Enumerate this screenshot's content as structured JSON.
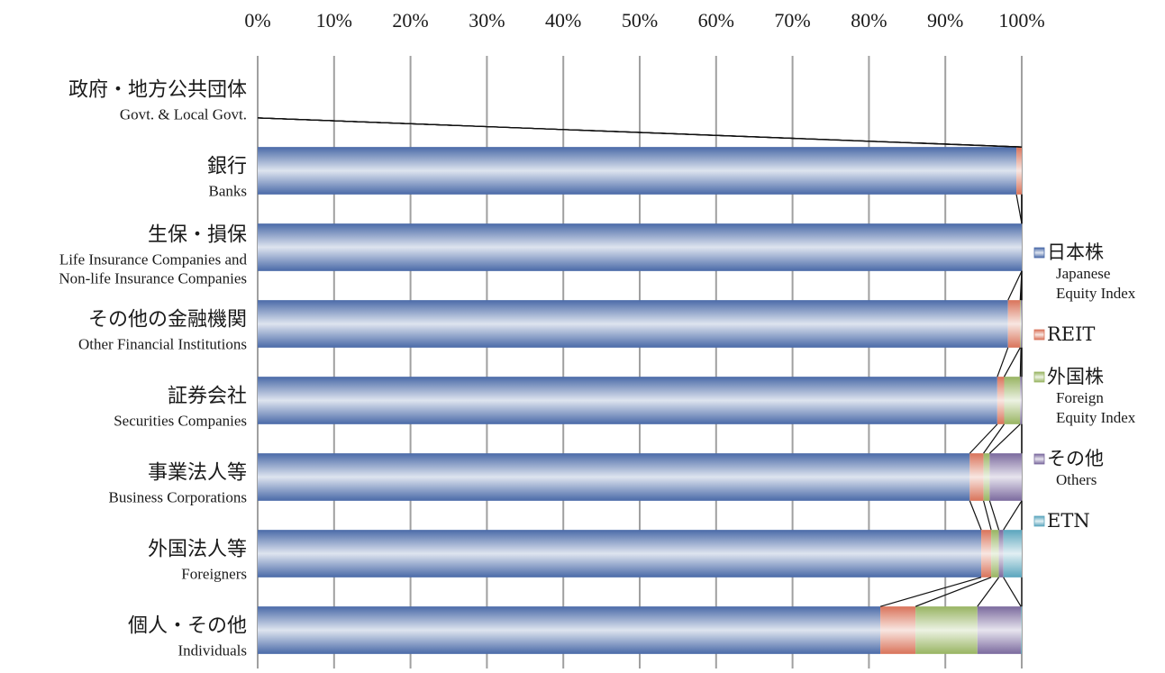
{
  "chart_data": {
    "type": "bar",
    "orientation": "horizontal",
    "stacked": "100%",
    "x_ticks": [
      "0%",
      "10%",
      "20%",
      "30%",
      "40%",
      "50%",
      "60%",
      "70%",
      "80%",
      "90%",
      "100%"
    ],
    "xlim": [
      0,
      100
    ],
    "x_tick_position": "top",
    "grid": true,
    "series_lines": true,
    "legend_position": "right",
    "categories": [
      {
        "ja": "政府・地方公共団体",
        "en": "Govt. & Local Govt."
      },
      {
        "ja": "銀行",
        "en": "Banks"
      },
      {
        "ja": "生保・損保",
        "en": "Life Insurance Companies and\nNon-life Insurance Companies"
      },
      {
        "ja": "その他の金融機関",
        "en": "Other Financial Institutions"
      },
      {
        "ja": "証券会社",
        "en": "Securities Companies"
      },
      {
        "ja": "事業法人等",
        "en": "Business Corporations"
      },
      {
        "ja": "外国法人等",
        "en": "Foreigners"
      },
      {
        "ja": "個人・その他",
        "en": "Individuals"
      }
    ],
    "series": [
      {
        "name": "日本株",
        "name_en": "Japanese\nEquity Index",
        "color": "#4a6aa8",
        "values": [
          0,
          99.3,
          100,
          98.2,
          96.8,
          93.2,
          94.7,
          81.5
        ]
      },
      {
        "name": "REIT",
        "name_en": "",
        "color": "#d9735a",
        "values": [
          0,
          0.7,
          0,
          1.6,
          0.9,
          1.8,
          1.3,
          4.6
        ]
      },
      {
        "name": "外国株",
        "name_en": "Foreign\nEquity Index",
        "color": "#98b462",
        "values": [
          0,
          0,
          0,
          0.1,
          2.1,
          0.8,
          1.0,
          8.1
        ]
      },
      {
        "name": "その他",
        "name_en": "Others",
        "color": "#7b6a9e",
        "values": [
          0,
          0,
          0,
          0.1,
          0.2,
          4.2,
          0.6,
          5.7
        ]
      },
      {
        "name": "ETN",
        "name_en": "",
        "color": "#5aa5bd",
        "values": [
          0,
          0,
          0,
          0,
          0,
          0,
          2.4,
          0.1
        ]
      }
    ]
  }
}
